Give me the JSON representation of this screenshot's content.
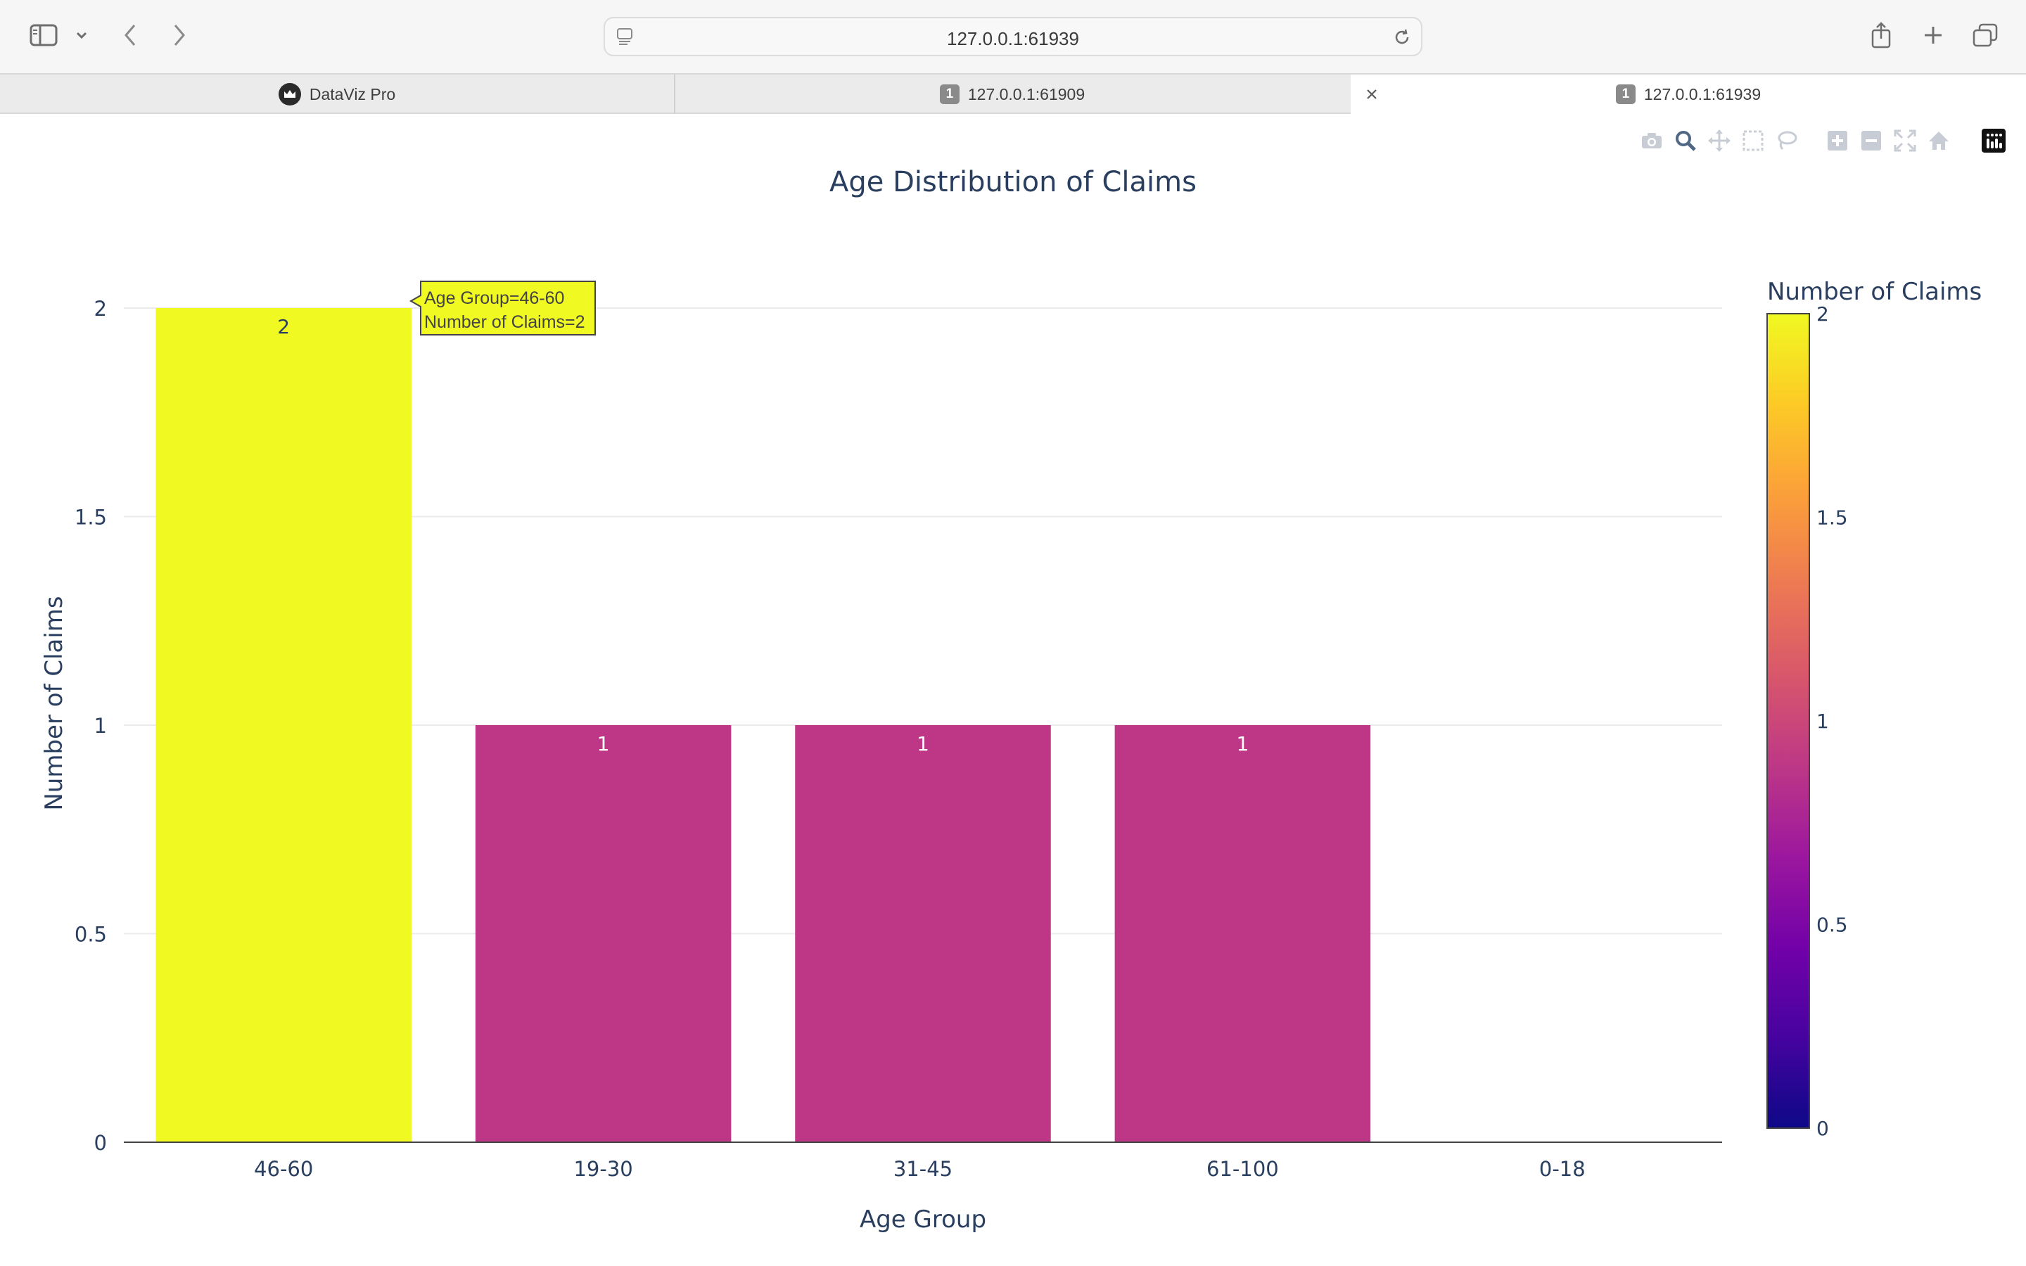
{
  "browser": {
    "url": "127.0.0.1:61939",
    "tabs": [
      {
        "label": "DataViz Pro",
        "icon": "crown-icon"
      },
      {
        "label": "127.0.0.1:61909",
        "badge": "1"
      },
      {
        "label": "127.0.0.1:61939",
        "badge": "1",
        "active": true
      }
    ]
  },
  "modebar": {
    "buttons": [
      "camera-icon",
      "zoom-icon",
      "pan-icon",
      "box-select-icon",
      "lasso-icon",
      "zoom-in-icon",
      "zoom-out-icon",
      "autoscale-icon",
      "home-icon",
      "plotly-logo-icon"
    ]
  },
  "chart_data": {
    "type": "bar",
    "title": "Age Distribution of Claims",
    "xlabel": "Age Group",
    "ylabel": "Number of Claims",
    "categories": [
      "46-60",
      "19-30",
      "31-45",
      "61-100",
      "0-18"
    ],
    "values": [
      2,
      1,
      1,
      1,
      0
    ],
    "data_labels": [
      "2",
      "1",
      "1",
      "1",
      ""
    ],
    "ylim": [
      0,
      2
    ],
    "yticks": [
      "0",
      "0.5",
      "1",
      "1.5",
      "2"
    ],
    "grid": true,
    "colorscale": "plasma",
    "colors": {
      "2": "#f0f921",
      "1": "#bd3786",
      "0": "#0d0887"
    },
    "colorbar": {
      "title": "Number of Claims",
      "ticks": [
        "0",
        "0.5",
        "1",
        "1.5",
        "2"
      ]
    },
    "hover": {
      "line1": "Age Group=46-60",
      "line2": "Number of Claims=2"
    }
  }
}
